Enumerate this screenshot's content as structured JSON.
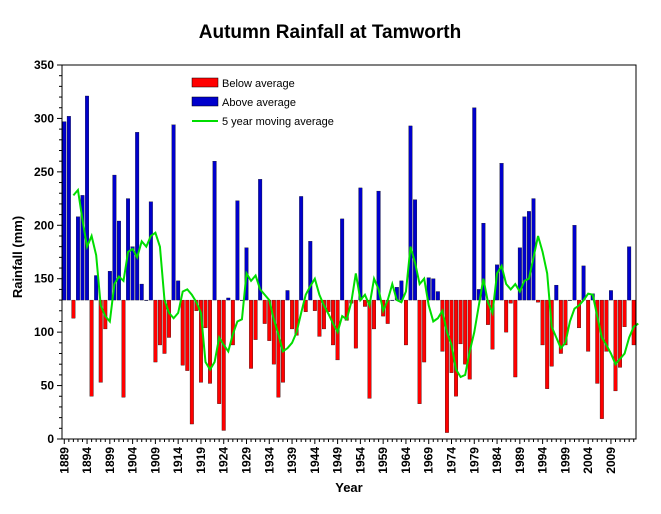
{
  "chart_data": {
    "type": "bar",
    "title": "Autumn Rainfall at Tamworth",
    "xlabel": "Year",
    "ylabel": "Rainfall (mm)",
    "ylim": [
      0,
      350
    ],
    "yticks": [
      0,
      50,
      100,
      150,
      200,
      250,
      300,
      350
    ],
    "xticks": [
      1889,
      1894,
      1899,
      1904,
      1909,
      1914,
      1919,
      1924,
      1929,
      1934,
      1939,
      1944,
      1949,
      1954,
      1959,
      1964,
      1969,
      1974,
      1979,
      1984,
      1989,
      1994,
      1999,
      2004,
      2009
    ],
    "baseline": 130,
    "start_year": 1889,
    "values": [
      297,
      302,
      113,
      208,
      228,
      321,
      40,
      153,
      53,
      103,
      157,
      247,
      204,
      39,
      225,
      180,
      287,
      145,
      130,
      222,
      72,
      88,
      80,
      95,
      294,
      148,
      69,
      64,
      14,
      120,
      53,
      104,
      52,
      260,
      33,
      8,
      132,
      88,
      223,
      130,
      179,
      66,
      93,
      243,
      108,
      92,
      70,
      39,
      53,
      139,
      103,
      97,
      227,
      119,
      185,
      120,
      96,
      103,
      119,
      88,
      74,
      206,
      111,
      127,
      85,
      235,
      124,
      38,
      103,
      232,
      115,
      108,
      130,
      142,
      148,
      88,
      293,
      224,
      33,
      72,
      151,
      150,
      138,
      82,
      6,
      62,
      40,
      89,
      70,
      56,
      310,
      140,
      202,
      107,
      84,
      163,
      258,
      100,
      127,
      58,
      179,
      208,
      213,
      225,
      128,
      88,
      47,
      68,
      144,
      80,
      88,
      130,
      200,
      104,
      162,
      82,
      136,
      52,
      19,
      82,
      139,
      45,
      67,
      105,
      180,
      88
    ],
    "moving_average": [
      228,
      233,
      205,
      180,
      190,
      172,
      125,
      115,
      110,
      145,
      152,
      148,
      175,
      178,
      170,
      185,
      180,
      190,
      193,
      180,
      130,
      118,
      113,
      118,
      138,
      140,
      135,
      128,
      118,
      72,
      65,
      72,
      95,
      88,
      82,
      98,
      110,
      112,
      155,
      148,
      153,
      140,
      135,
      130,
      112,
      98,
      82,
      85,
      90,
      100,
      118,
      135,
      143,
      150,
      135,
      125,
      117,
      108,
      100,
      115,
      112,
      128,
      155,
      130,
      135,
      125,
      150,
      140,
      120,
      130,
      145,
      130,
      128,
      138,
      180,
      165,
      145,
      150,
      125,
      110,
      113,
      120,
      100,
      88,
      65,
      58,
      60,
      82,
      100,
      125,
      150,
      128,
      118,
      155,
      162,
      145,
      140,
      145,
      138,
      148,
      150,
      170,
      190,
      175,
      155,
      105,
      95,
      85,
      90,
      110,
      122,
      125,
      130,
      136,
      135,
      115,
      95,
      88,
      80,
      70,
      75,
      80,
      95,
      105,
      108
    ],
    "legend": [
      {
        "label": "Below average",
        "color": "#ff0000"
      },
      {
        "label": "Above average",
        "color": "#0000cc"
      },
      {
        "label": "5 year moving average",
        "color": "#00dd00"
      }
    ]
  }
}
